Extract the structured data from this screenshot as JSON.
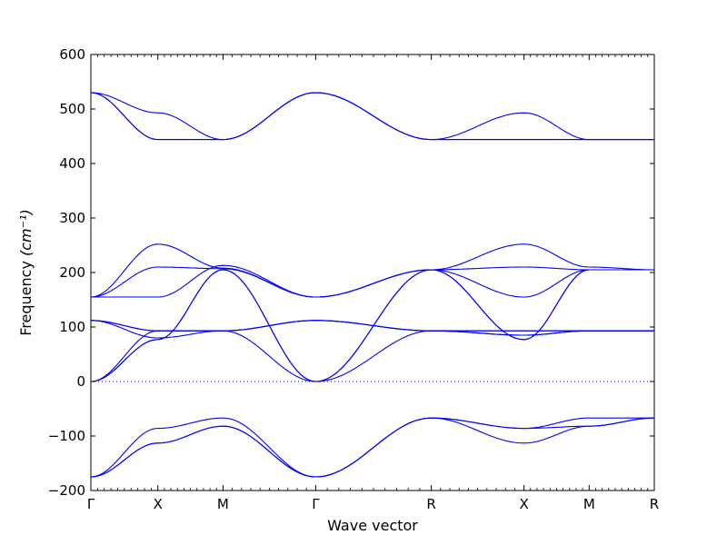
{
  "chart_data": {
    "type": "line",
    "title": "",
    "xlabel": "Wave vector",
    "ylabel": "Frequency",
    "ylabel_unit": "(cm⁻¹)",
    "ylim": [
      -200,
      600
    ],
    "yticks": [
      -200,
      -100,
      0,
      100,
      200,
      300,
      400,
      500,
      600
    ],
    "ytick_labels": [
      "−200",
      "−100",
      "0",
      "100",
      "200",
      "300",
      "400",
      "500",
      "600"
    ],
    "xlim": [
      0,
      6.14
    ],
    "path_points": [
      {
        "label": "Γ",
        "x": 0
      },
      {
        "label": "X",
        "x": 0.73
      },
      {
        "label": "M",
        "x": 1.44
      },
      {
        "label": "Γ",
        "x": 2.45
      },
      {
        "label": "R",
        "x": 3.71
      },
      {
        "label": "X",
        "x": 4.72
      },
      {
        "label": "M",
        "x": 5.43
      },
      {
        "label": "R",
        "x": 6.14
      }
    ],
    "line_color": "#0000ff",
    "zero_line": {
      "y": 0,
      "style": "dotted"
    },
    "grid": false,
    "legend": "none",
    "series": [
      {
        "points": [
          [
            0,
            530
          ],
          [
            0.73,
            493
          ],
          [
            1.44,
            444
          ],
          [
            2.45,
            530
          ],
          [
            3.71,
            444
          ],
          [
            4.72,
            493
          ],
          [
            5.43,
            444
          ],
          [
            6.14,
            444
          ]
        ]
      },
      {
        "points": [
          [
            0,
            530
          ],
          [
            0.73,
            444
          ],
          [
            1.44,
            444
          ],
          [
            2.45,
            530
          ],
          [
            3.71,
            444
          ],
          [
            4.72,
            444
          ],
          [
            5.43,
            444
          ],
          [
            6.14,
            444
          ]
        ]
      },
      {
        "points": [
          [
            0,
            530
          ],
          [
            0.73,
            444
          ],
          [
            1.44,
            444
          ],
          [
            2.45,
            530
          ],
          [
            3.71,
            444
          ],
          [
            4.72,
            444
          ],
          [
            5.43,
            444
          ],
          [
            6.14,
            444
          ]
        ]
      },
      {
        "points": [
          [
            0,
            155
          ],
          [
            0.73,
            252
          ],
          [
            1.44,
            208
          ],
          [
            2.45,
            155
          ],
          [
            3.71,
            205
          ],
          [
            4.72,
            252
          ],
          [
            5.43,
            210
          ],
          [
            6.14,
            205
          ]
        ]
      },
      {
        "points": [
          [
            0,
            155
          ],
          [
            0.73,
            210
          ],
          [
            1.44,
            207
          ],
          [
            2.45,
            155
          ],
          [
            3.71,
            205
          ],
          [
            4.72,
            210
          ],
          [
            5.43,
            205
          ],
          [
            6.14,
            205
          ]
        ]
      },
      {
        "points": [
          [
            0,
            155
          ],
          [
            0.73,
            155
          ],
          [
            1.44,
            213
          ],
          [
            2.45,
            155
          ],
          [
            3.71,
            205
          ],
          [
            4.72,
            155
          ],
          [
            5.43,
            205
          ],
          [
            6.14,
            205
          ]
        ]
      },
      {
        "points": [
          [
            0,
            112
          ],
          [
            0.73,
            93
          ],
          [
            1.44,
            93
          ],
          [
            2.45,
            112
          ],
          [
            3.71,
            93
          ],
          [
            4.72,
            93
          ],
          [
            5.43,
            93
          ],
          [
            6.14,
            93
          ]
        ]
      },
      {
        "points": [
          [
            0,
            112
          ],
          [
            0.73,
            80
          ],
          [
            1.44,
            93
          ],
          [
            2.45,
            112
          ],
          [
            3.71,
            93
          ],
          [
            4.72,
            85
          ],
          [
            5.43,
            93
          ],
          [
            6.14,
            93
          ]
        ]
      },
      {
        "points": [
          [
            0,
            112
          ],
          [
            0.73,
            93
          ],
          [
            1.44,
            93
          ],
          [
            2.45,
            112
          ],
          [
            3.71,
            93
          ],
          [
            4.72,
            93
          ],
          [
            5.43,
            93
          ],
          [
            6.14,
            93
          ]
        ]
      },
      {
        "points": [
          [
            0,
            0
          ],
          [
            0.73,
            77
          ],
          [
            1.44,
            205
          ],
          [
            2.45,
            0
          ],
          [
            3.71,
            205
          ],
          [
            4.72,
            77
          ],
          [
            5.43,
            205
          ],
          [
            6.14,
            205
          ]
        ]
      },
      {
        "points": [
          [
            0,
            0
          ],
          [
            0.73,
            77
          ],
          [
            1.44,
            205
          ],
          [
            2.45,
            0
          ],
          [
            3.71,
            205
          ],
          [
            4.72,
            77
          ],
          [
            5.43,
            205
          ],
          [
            6.14,
            205
          ]
        ]
      },
      {
        "points": [
          [
            0,
            0
          ],
          [
            0.73,
            93
          ],
          [
            1.44,
            93
          ],
          [
            2.45,
            0
          ],
          [
            3.71,
            93
          ],
          [
            4.72,
            85
          ],
          [
            5.43,
            93
          ],
          [
            6.14,
            93
          ]
        ]
      },
      {
        "points": [
          [
            0,
            -175
          ],
          [
            0.73,
            -113
          ],
          [
            1.44,
            -82
          ],
          [
            2.45,
            -175
          ],
          [
            3.71,
            -67
          ],
          [
            4.72,
            -113
          ],
          [
            5.43,
            -82
          ],
          [
            6.14,
            -67
          ]
        ]
      },
      {
        "points": [
          [
            0,
            -175
          ],
          [
            0.73,
            -113
          ],
          [
            1.44,
            -82
          ],
          [
            2.45,
            -175
          ],
          [
            3.71,
            -67
          ],
          [
            4.72,
            -86
          ],
          [
            5.43,
            -82
          ],
          [
            6.14,
            -67
          ]
        ]
      },
      {
        "points": [
          [
            0,
            -175
          ],
          [
            0.73,
            -86
          ],
          [
            1.44,
            -67
          ],
          [
            2.45,
            -175
          ],
          [
            3.71,
            -67
          ],
          [
            4.72,
            -86
          ],
          [
            5.43,
            -67
          ],
          [
            6.14,
            -67
          ]
        ]
      }
    ]
  }
}
